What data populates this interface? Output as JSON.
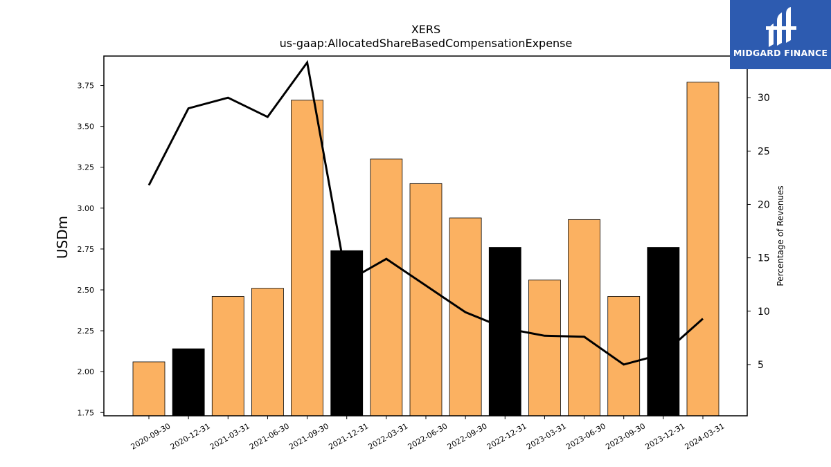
{
  "chart_data": {
    "type": "bar",
    "title": "XERS",
    "subtitle": "us-gaap:AllocatedShareBasedCompensationExpense",
    "ylabel": "USDm",
    "y2label": "Percentage of Revenues",
    "categories": [
      "2020-09-30",
      "2020-12-31",
      "2021-03-31",
      "2021-06-30",
      "2021-09-30",
      "2021-12-31",
      "2022-03-31",
      "2022-06-30",
      "2022-09-30",
      "2022-12-31",
      "2023-03-31",
      "2023-06-30",
      "2023-09-30",
      "2023-12-31",
      "2024-03-31"
    ],
    "ylim": [
      1.73,
      3.93
    ],
    "yticks": [
      "1.75",
      "2.00",
      "2.25",
      "2.50",
      "2.75",
      "3.00",
      "3.25",
      "3.50",
      "3.75"
    ],
    "y2lim": [
      0.2,
      33.9
    ],
    "y2ticks": [
      "5",
      "10",
      "15",
      "20",
      "25",
      "30"
    ],
    "series": [
      {
        "kind": "bar",
        "values": [
          2.06,
          2.14,
          2.46,
          2.51,
          3.66,
          2.74,
          3.3,
          3.15,
          2.94,
          2.76,
          2.56,
          2.93,
          2.46,
          2.76,
          3.77
        ],
        "colors": [
          "#fbb161",
          "#000000",
          "#fbb161",
          "#fbb161",
          "#fbb161",
          "#000000",
          "#fbb161",
          "#fbb161",
          "#fbb161",
          "#000000",
          "#fbb161",
          "#fbb161",
          "#fbb161",
          "#000000",
          "#fbb161"
        ]
      },
      {
        "kind": "line",
        "axis": "right",
        "color": "#000000",
        "values": [
          21.8,
          29.0,
          30.0,
          28.2,
          33.3,
          12.8,
          14.9,
          12.4,
          9.9,
          8.4,
          7.7,
          7.6,
          5.0,
          6.0,
          9.3
        ]
      }
    ],
    "grid": false
  },
  "logo": {
    "text": "MIDGARD FINANCE"
  }
}
